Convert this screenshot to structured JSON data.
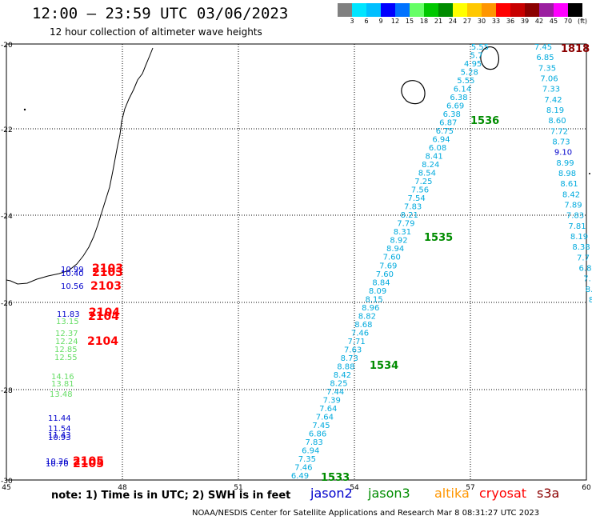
{
  "header": {
    "title": "12:00 – 23:59 UTC 03/06/2023",
    "subtitle": "12 hour collection of altimeter wave heights"
  },
  "color_scale": {
    "ticks": [
      "3",
      "6",
      "9",
      "12",
      "15",
      "18",
      "21",
      "24",
      "27",
      "30",
      "33",
      "36",
      "39",
      "42",
      "45",
      "70",
      "(ft)"
    ],
    "colors": [
      "#808080",
      "#00e5ff",
      "#00bfff",
      "#0000ff",
      "#0072ff",
      "#66ff66",
      "#00c800",
      "#008c00",
      "#ffff00",
      "#ffc800",
      "#ff9600",
      "#ff0000",
      "#c80000",
      "#8b0000",
      "#9b1fa0",
      "#ff00ff",
      "#000000"
    ]
  },
  "axes": {
    "lat_labels": [
      "-20",
      "-22",
      "-24",
      "-26",
      "-28",
      "-30"
    ],
    "lon_labels": [
      "45",
      "48",
      "51",
      "54",
      "57",
      "60"
    ]
  },
  "track_labels": [
    {
      "text": "1818",
      "color": "#8b0000"
    },
    {
      "text": "1536",
      "color": "#008c00"
    },
    {
      "text": "1535",
      "color": "#008c00"
    },
    {
      "text": "1534",
      "color": "#008c00"
    },
    {
      "text": "1533",
      "color": "#008c00"
    },
    {
      "text": "2103",
      "color": "#ff0000"
    },
    {
      "text": "2103",
      "color": "#ff0000"
    },
    {
      "text": "2103",
      "color": "#ff0000"
    },
    {
      "text": "2104",
      "color": "#ff0000"
    },
    {
      "text": "2104",
      "color": "#ff0000"
    },
    {
      "text": "2104",
      "color": "#ff0000"
    },
    {
      "text": "2105",
      "color": "#ff0000"
    },
    {
      "text": "2105",
      "color": "#ff0000"
    }
  ],
  "left_values": [
    {
      "text": "10.99",
      "color": "#0000cc"
    },
    {
      "text": "10.40",
      "color": "#0000cc"
    },
    {
      "text": "10.56",
      "color": "#0000cc"
    },
    {
      "text": "11.83",
      "color": "#0000cc"
    },
    {
      "text": "13.15",
      "color": "#66dd66"
    },
    {
      "text": "12.37",
      "color": "#66dd66"
    },
    {
      "text": "12.24",
      "color": "#66dd66"
    },
    {
      "text": "12.85",
      "color": "#66dd66"
    },
    {
      "text": "12.55",
      "color": "#66dd66"
    },
    {
      "text": "14.16",
      "color": "#66dd66"
    },
    {
      "text": "13.81",
      "color": "#66dd66"
    },
    {
      "text": "13.48",
      "color": "#66dd66"
    },
    {
      "text": "11.44",
      "color": "#0000cc"
    },
    {
      "text": "11.54",
      "color": "#0000cc"
    },
    {
      "text": "11.43",
      "color": "#0000cc"
    },
    {
      "text": "10.93",
      "color": "#0000cc"
    },
    {
      "text": "10.26",
      "color": "#0000cc"
    },
    {
      "text": "10.70",
      "color": "#0000cc"
    }
  ],
  "track_a_values": [
    "5.55",
    "5.7",
    "4.95",
    "5.28",
    "5.55",
    "6.14",
    "6.38",
    "6.69",
    "6.38",
    "6.87",
    "6.75",
    "6.94",
    "6.08",
    "8.41",
    "8.24",
    "8.54",
    "7.25",
    "7.56",
    "7.54",
    "7.83",
    "8.21",
    "7.79",
    "8.31",
    "8.92",
    "8.94",
    "7.60",
    "7.69",
    "7.60",
    "8.84",
    "8.09",
    "8.15",
    "8.96",
    "8.82",
    "8.68",
    "7.46",
    "7.71",
    "7.63",
    "8.73",
    "8.88",
    "8.42",
    "8.25",
    "7.44",
    "7.39",
    "7.64",
    "7.64",
    "7.45",
    "6.86",
    "7.83",
    "6.94",
    "7.35",
    "7.46",
    "6.49"
  ],
  "track_b_values": [
    "7.45",
    "6.85",
    "7.35",
    "7.06",
    "7.33",
    "7.42",
    "8.19",
    "8.60",
    "7.72",
    "8.73",
    "9.10",
    "8.99",
    "8.98",
    "8.61",
    "8.42",
    "7.89",
    "7.83",
    "7.81",
    "8.19",
    "8.38",
    "7.7",
    "6.8",
    "7.",
    "8.",
    "8"
  ],
  "footer": {
    "note": "note:  1) Time is in UTC;  2) SWH is in feet",
    "satellites": [
      {
        "name": "jason2",
        "color": "#0000cc"
      },
      {
        "name": "jason3",
        "color": "#008c00"
      },
      {
        "name": "altika",
        "color": "#ff9600"
      },
      {
        "name": "cryosat",
        "color": "#ff0000"
      },
      {
        "name": "s3a",
        "color": "#8b0000"
      }
    ],
    "credit": "NOAA/NESDIS Center for Satellite Applications and Research    Mar  8 08:31:27 UTC 2023"
  }
}
